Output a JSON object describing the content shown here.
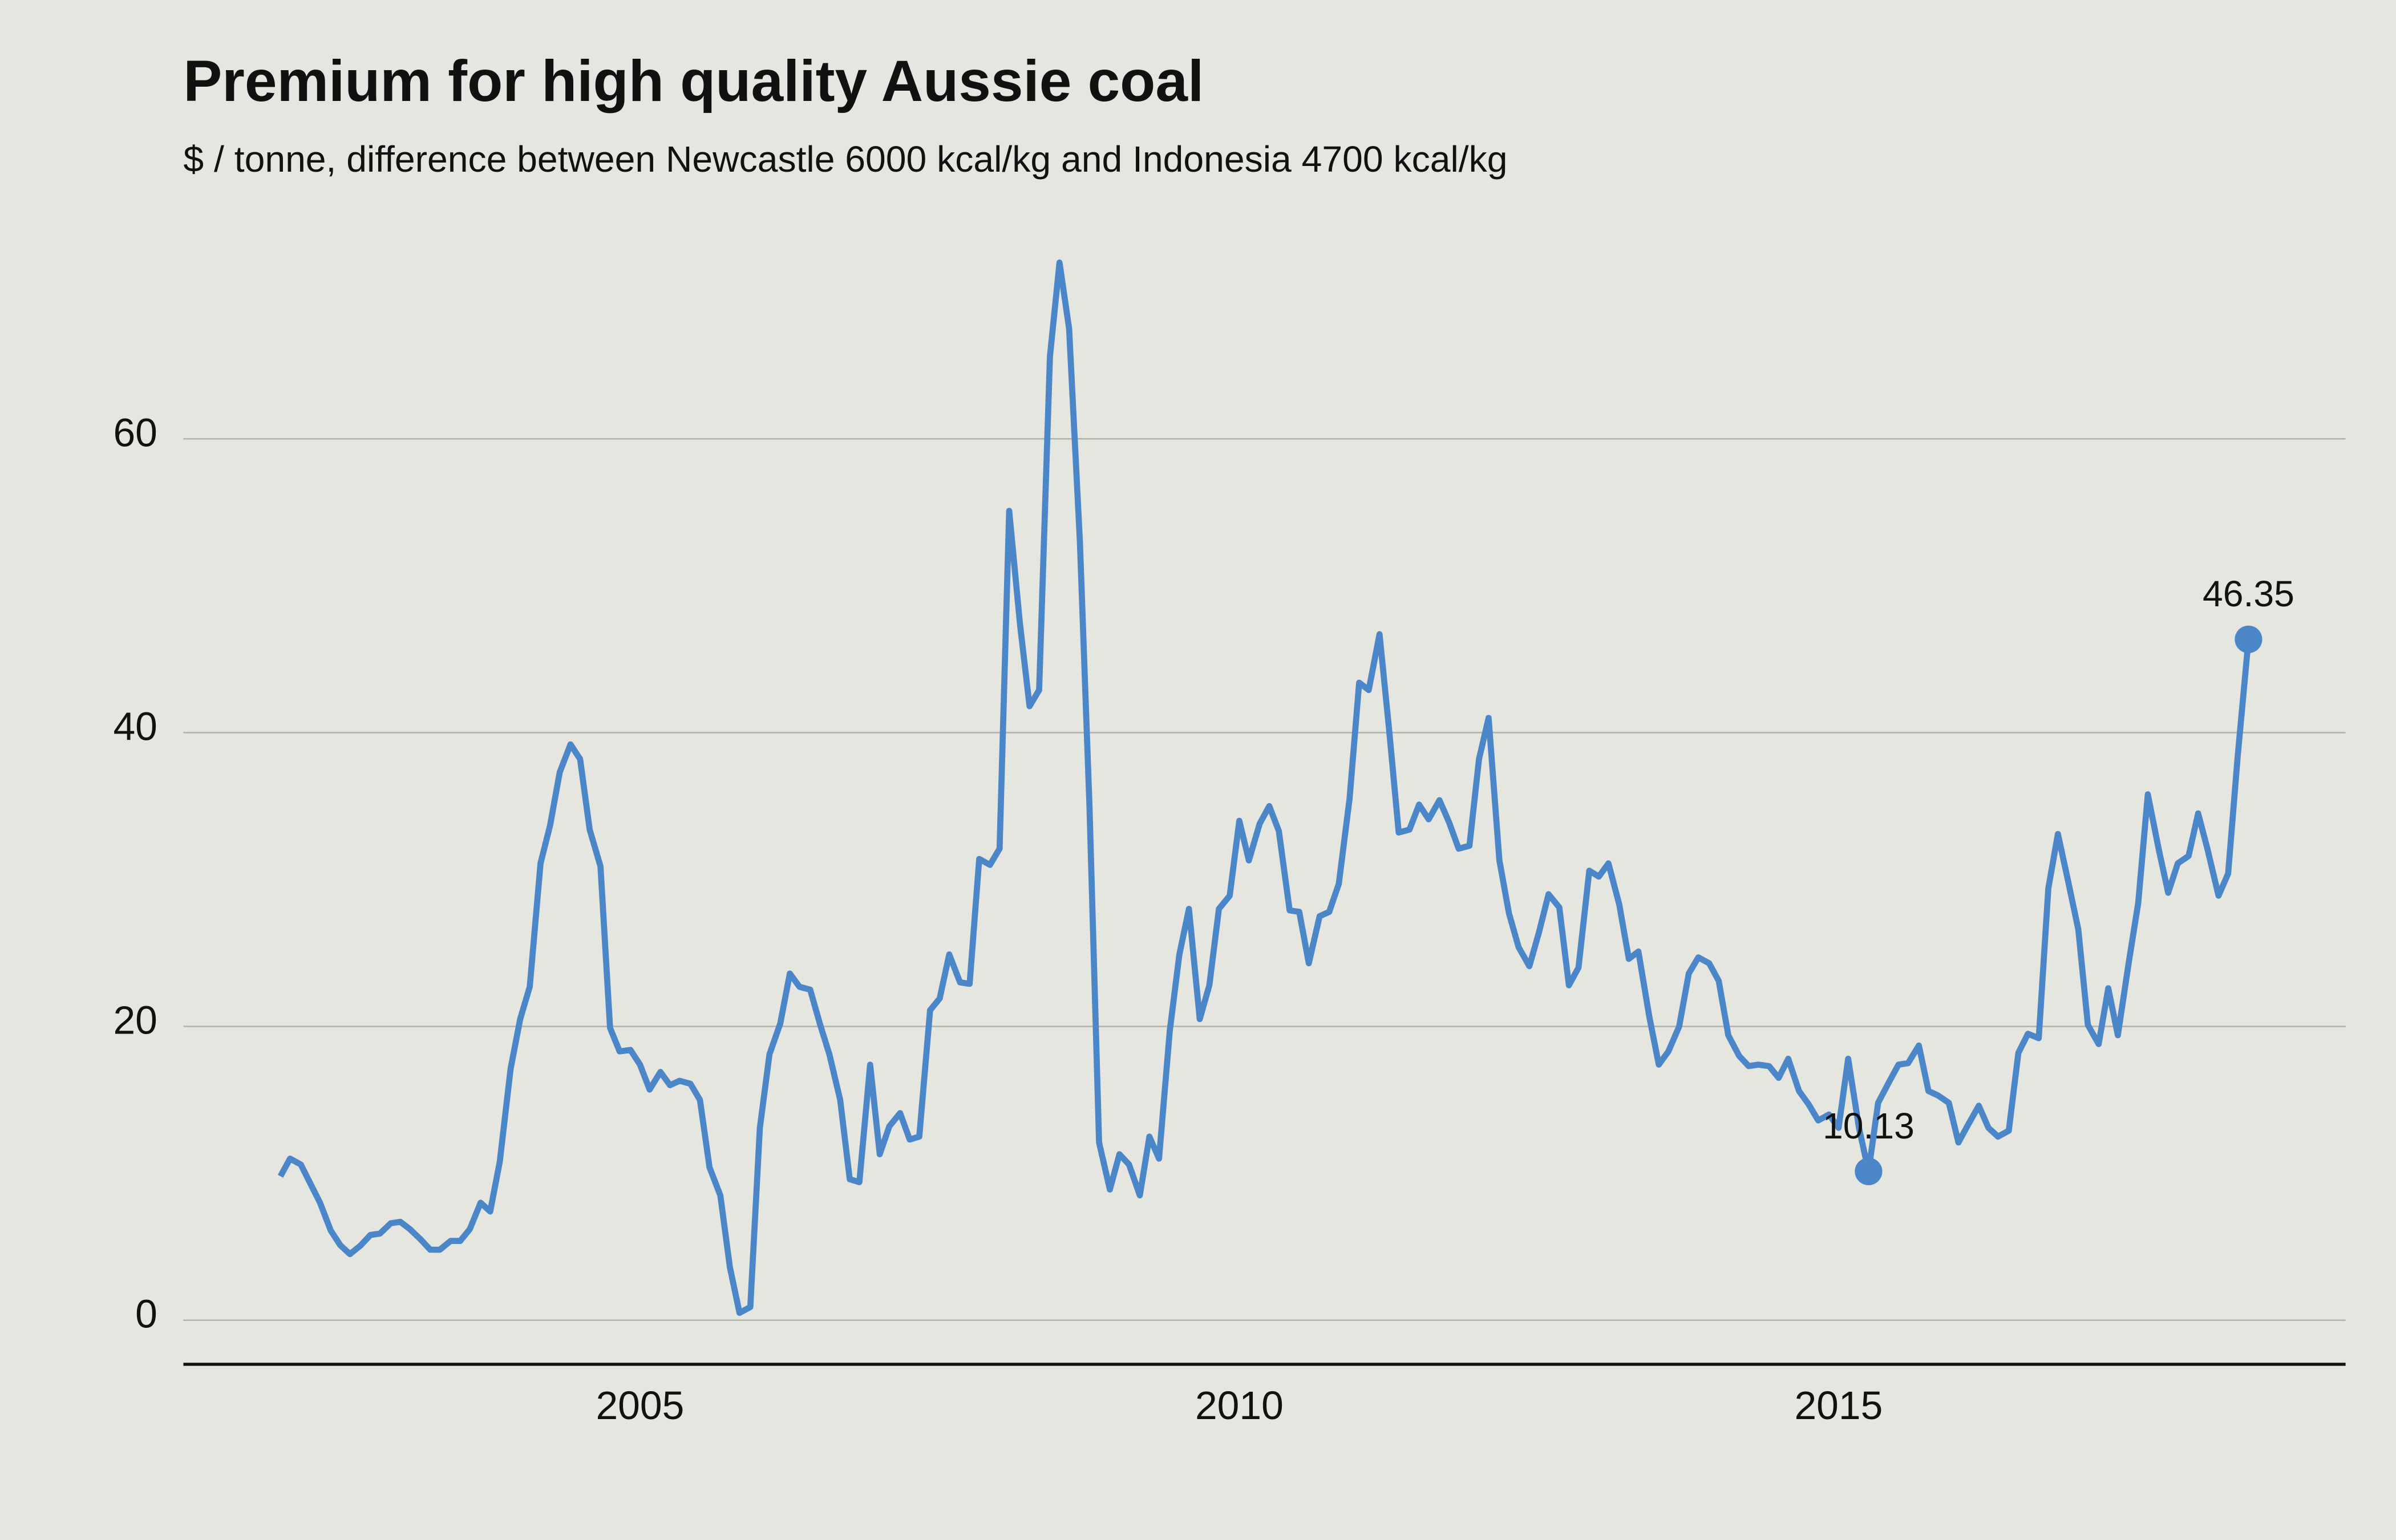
{
  "chart_data": {
    "type": "line",
    "title": "Premium for high quality Aussie coal",
    "subtitle": "$ / tonne, difference between Newcastle 6000 kcal/kg and Indonesia 4700 kcal/kg",
    "x": [
      2002,
      2002.08,
      2002.17,
      2002.25,
      2002.33,
      2002.42,
      2002.5,
      2002.58,
      2002.67,
      2002.75,
      2002.83,
      2002.92,
      2003,
      2003.08,
      2003.17,
      2003.25,
      2003.33,
      2003.42,
      2003.5,
      2003.58,
      2003.67,
      2003.75,
      2003.83,
      2003.92,
      2004,
      2004.08,
      2004.17,
      2004.25,
      2004.33,
      2004.42,
      2004.5,
      2004.58,
      2004.67,
      2004.75,
      2004.83,
      2004.92,
      2005,
      2005.08,
      2005.17,
      2005.25,
      2005.33,
      2005.42,
      2005.5,
      2005.58,
      2005.67,
      2005.75,
      2005.83,
      2005.92,
      2006,
      2006.08,
      2006.17,
      2006.25,
      2006.33,
      2006.42,
      2006.5,
      2006.58,
      2006.67,
      2006.75,
      2006.83,
      2006.92,
      2007,
      2007.08,
      2007.17,
      2007.25,
      2007.33,
      2007.42,
      2007.5,
      2007.58,
      2007.67,
      2007.75,
      2007.83,
      2007.92,
      2008,
      2008.08,
      2008.17,
      2008.25,
      2008.33,
      2008.42,
      2008.5,
      2008.58,
      2008.67,
      2008.75,
      2008.83,
      2008.92,
      2009,
      2009.08,
      2009.17,
      2009.25,
      2009.33,
      2009.42,
      2009.5,
      2009.58,
      2009.67,
      2009.75,
      2009.83,
      2009.92,
      2010,
      2010.08,
      2010.17,
      2010.25,
      2010.33,
      2010.42,
      2010.5,
      2010.58,
      2010.67,
      2010.75,
      2010.83,
      2010.92,
      2011,
      2011.08,
      2011.17,
      2011.25,
      2011.33,
      2011.42,
      2011.5,
      2011.58,
      2011.67,
      2011.75,
      2011.83,
      2011.92,
      2012,
      2012.08,
      2012.17,
      2012.25,
      2012.33,
      2012.42,
      2012.5,
      2012.58,
      2012.67,
      2012.75,
      2012.83,
      2012.92,
      2013,
      2013.08,
      2013.17,
      2013.25,
      2013.33,
      2013.42,
      2013.5,
      2013.58,
      2013.67,
      2013.75,
      2013.83,
      2013.92,
      2014,
      2014.08,
      2014.17,
      2014.25,
      2014.33,
      2014.42,
      2014.5,
      2014.58,
      2014.67,
      2014.75,
      2014.83,
      2014.92,
      2015,
      2015.08,
      2015.17,
      2015.25,
      2015.33,
      2015.42,
      2015.5,
      2015.58,
      2015.67,
      2015.75,
      2015.83,
      2015.92,
      2016,
      2016.08,
      2016.17,
      2016.25,
      2016.33,
      2016.42,
      2016.5,
      2016.58,
      2016.67,
      2016.75,
      2016.83,
      2016.92,
      2017,
      2017.08,
      2017.17,
      2017.25,
      2017.33,
      2017.42,
      2017.5,
      2017.58,
      2017.67,
      2017.75,
      2017.83,
      2017.92,
      2018,
      2018.08,
      2018.17,
      2018.25,
      2018.33,
      2018.42
    ],
    "series": [
      {
        "color": "#4a86c8",
        "values": [
          9.8,
          11.0,
          10.6,
          9.3,
          8.0,
          6.1,
          5.1,
          4.5,
          5.1,
          5.8,
          5.9,
          6.6,
          6.7,
          6.2,
          5.5,
          4.8,
          4.8,
          5.4,
          5.4,
          6.2,
          8.0,
          7.4,
          10.8,
          17.1,
          20.5,
          22.7,
          31.1,
          33.7,
          37.3,
          39.2,
          38.2,
          33.4,
          30.9,
          19.9,
          18.3,
          18.4,
          17.4,
          15.7,
          16.9,
          16.0,
          16.3,
          16.1,
          15.0,
          10.4,
          8.5,
          3.6,
          0.5,
          0.9,
          13.1,
          18.1,
          20.2,
          23.6,
          22.7,
          22.5,
          20.2,
          18.1,
          15.0,
          9.6,
          9.4,
          17.4,
          11.3,
          13.2,
          14.1,
          12.3,
          12.5,
          21.1,
          21.9,
          24.9,
          23.0,
          22.9,
          31.4,
          31.0,
          32.1,
          55.1,
          47.4,
          41.8,
          42.9,
          65.6,
          72.0,
          67.5,
          53.0,
          35.0,
          12.1,
          8.9,
          11.3,
          10.6,
          8.5,
          12.5,
          11.0,
          19.7,
          24.9,
          28.0,
          20.5,
          22.8,
          28.0,
          28.9,
          34.0,
          31.3,
          33.8,
          35.0,
          33.3,
          27.9,
          27.8,
          24.3,
          27.5,
          27.8,
          29.7,
          35.5,
          43.4,
          42.9,
          46.7,
          40.2,
          33.2,
          33.4,
          35.1,
          34.1,
          35.4,
          33.9,
          32.1,
          32.3,
          38.2,
          41.0,
          31.3,
          27.7,
          25.4,
          24.1,
          26.4,
          29.0,
          28.1,
          22.8,
          24.0,
          30.6,
          30.2,
          31.1,
          28.3,
          24.6,
          25.1,
          20.7,
          17.4,
          18.3,
          20.0,
          23.6,
          24.7,
          24.3,
          23.1,
          19.4,
          18.0,
          17.3,
          17.4,
          17.3,
          16.5,
          17.8,
          15.6,
          14.7,
          13.6,
          14.0,
          13.1,
          17.8,
          13.1,
          10.13,
          14.8,
          16.2,
          17.4,
          17.5,
          18.7,
          15.6,
          15.3,
          14.8,
          12.1,
          13.3,
          14.6,
          13.1,
          12.5,
          12.9,
          18.2,
          19.5,
          19.2,
          29.4,
          33.1,
          29.7,
          26.6,
          20.1,
          18.8,
          22.6,
          19.4,
          24.3,
          28.4,
          35.8,
          32.1,
          29.1,
          31.1,
          31.6,
          34.5,
          32.0,
          28.9,
          30.4,
          38.4,
          46.35
        ]
      }
    ],
    "annotations": [
      {
        "x": 2015.25,
        "y": 10.13
      },
      {
        "x": 2018.42,
        "y": 46.35
      }
    ],
    "xlim": [
      2001.19,
      2019.23
    ],
    "xticks": [
      2005,
      2010,
      2015
    ],
    "ylim": [
      -3,
      75
    ],
    "yticks": [
      0,
      20,
      40,
      60
    ],
    "grid": true
  }
}
